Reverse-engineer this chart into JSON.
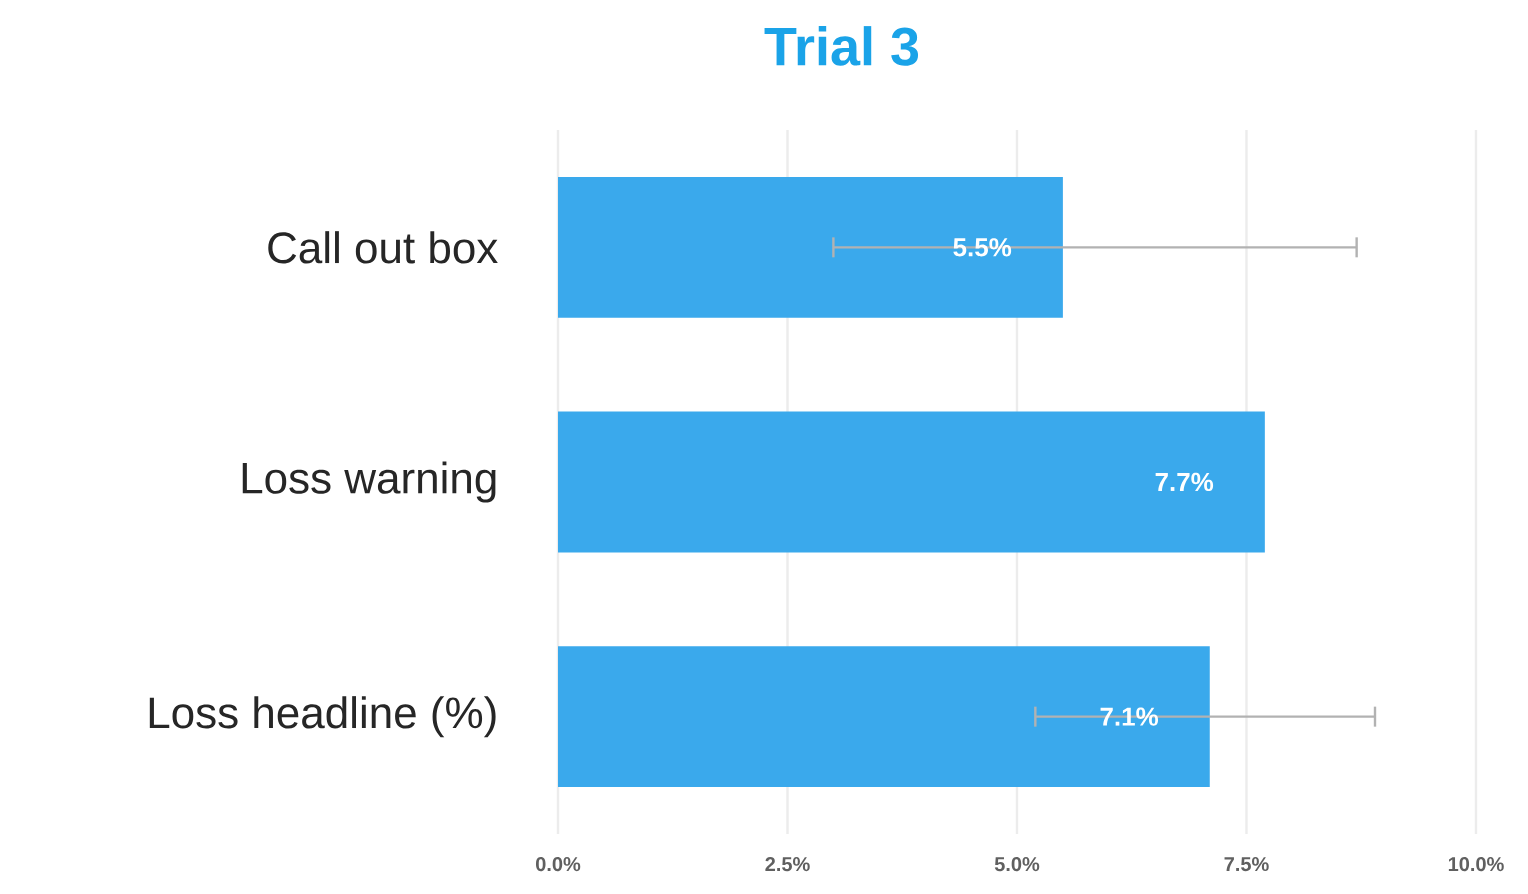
{
  "chart_data": {
    "type": "bar",
    "orientation": "horizontal",
    "title": "Trial 3",
    "categories": [
      "Call out box",
      "Loss warning",
      "Loss headline (%)"
    ],
    "values": [
      5.5,
      7.7,
      7.1
    ],
    "value_labels": [
      "5.5%",
      "7.7%",
      "7.1%"
    ],
    "errors": [
      [
        3.0,
        8.7
      ],
      null,
      [
        5.2,
        8.9
      ]
    ],
    "color": "#3aa9ec",
    "xlim": [
      0,
      10
    ],
    "xticks": [
      {
        "value": 0,
        "label": "0.0%"
      },
      {
        "value": 2.5,
        "label": "2.5%"
      },
      {
        "value": 5,
        "label": "5.0%"
      },
      {
        "value": 7.5,
        "label": "7.5%"
      },
      {
        "value": 10,
        "label": "10.0%"
      }
    ],
    "grid": "x"
  }
}
